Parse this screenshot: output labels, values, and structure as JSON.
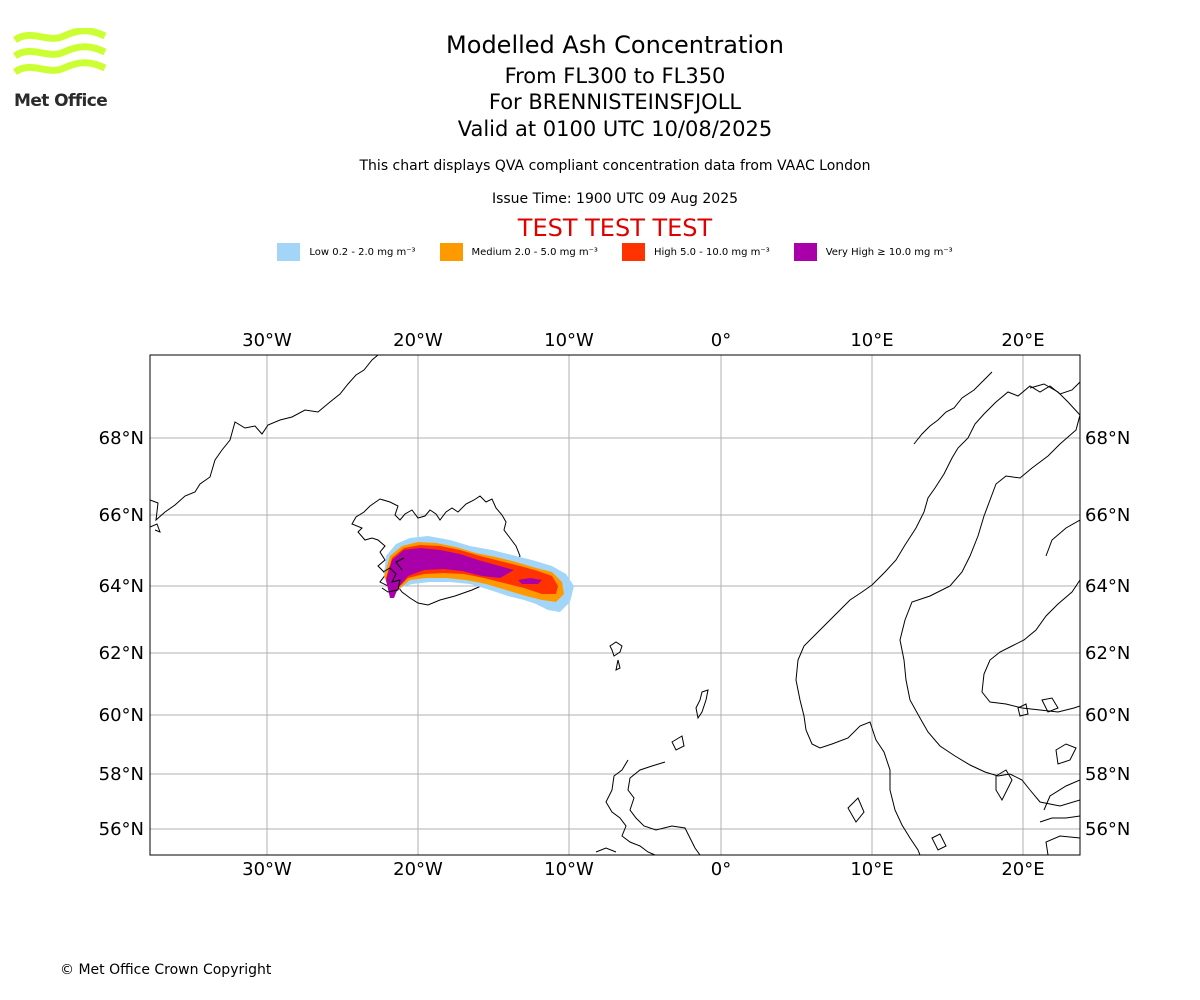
{
  "logo": {
    "text": "Met Office",
    "color": "#ccff33"
  },
  "header": {
    "title": "Modelled Ash Concentration",
    "line2": "From FL300 to FL350",
    "line3": "For BRENNISTEINSFJOLL",
    "line4": "Valid at 0100 UTC 10/08/2025",
    "description": "This chart displays QVA compliant concentration data from VAAC London",
    "issue_time": "Issue Time: 1900 UTC 09 Aug 2025",
    "test_banner": "TEST TEST TEST"
  },
  "legend": [
    {
      "label": "Low 0.2 - 2.0 mg m⁻³",
      "color": "#a3d5f8"
    },
    {
      "label": "Medium 2.0 - 5.0 mg m⁻³",
      "color": "#ff9900"
    },
    {
      "label": "High 5.0 - 10.0 mg m⁻³",
      "color": "#ff3300"
    },
    {
      "label": "Very High  ≥  10.0 mg m⁻³",
      "color": "#aa00aa"
    }
  ],
  "map": {
    "longitude_labels": [
      "30°W",
      "20°W",
      "10°W",
      "0°",
      "10°E",
      "20°E"
    ],
    "latitude_labels": [
      "68°N",
      "66°N",
      "64°N",
      "62°N",
      "60°N",
      "58°N",
      "56°N"
    ],
    "gridlines": true,
    "ash_plume_source": "BRENNISTEINSFJOLL"
  },
  "footer": {
    "copyright": "© Met Office Crown Copyright"
  }
}
